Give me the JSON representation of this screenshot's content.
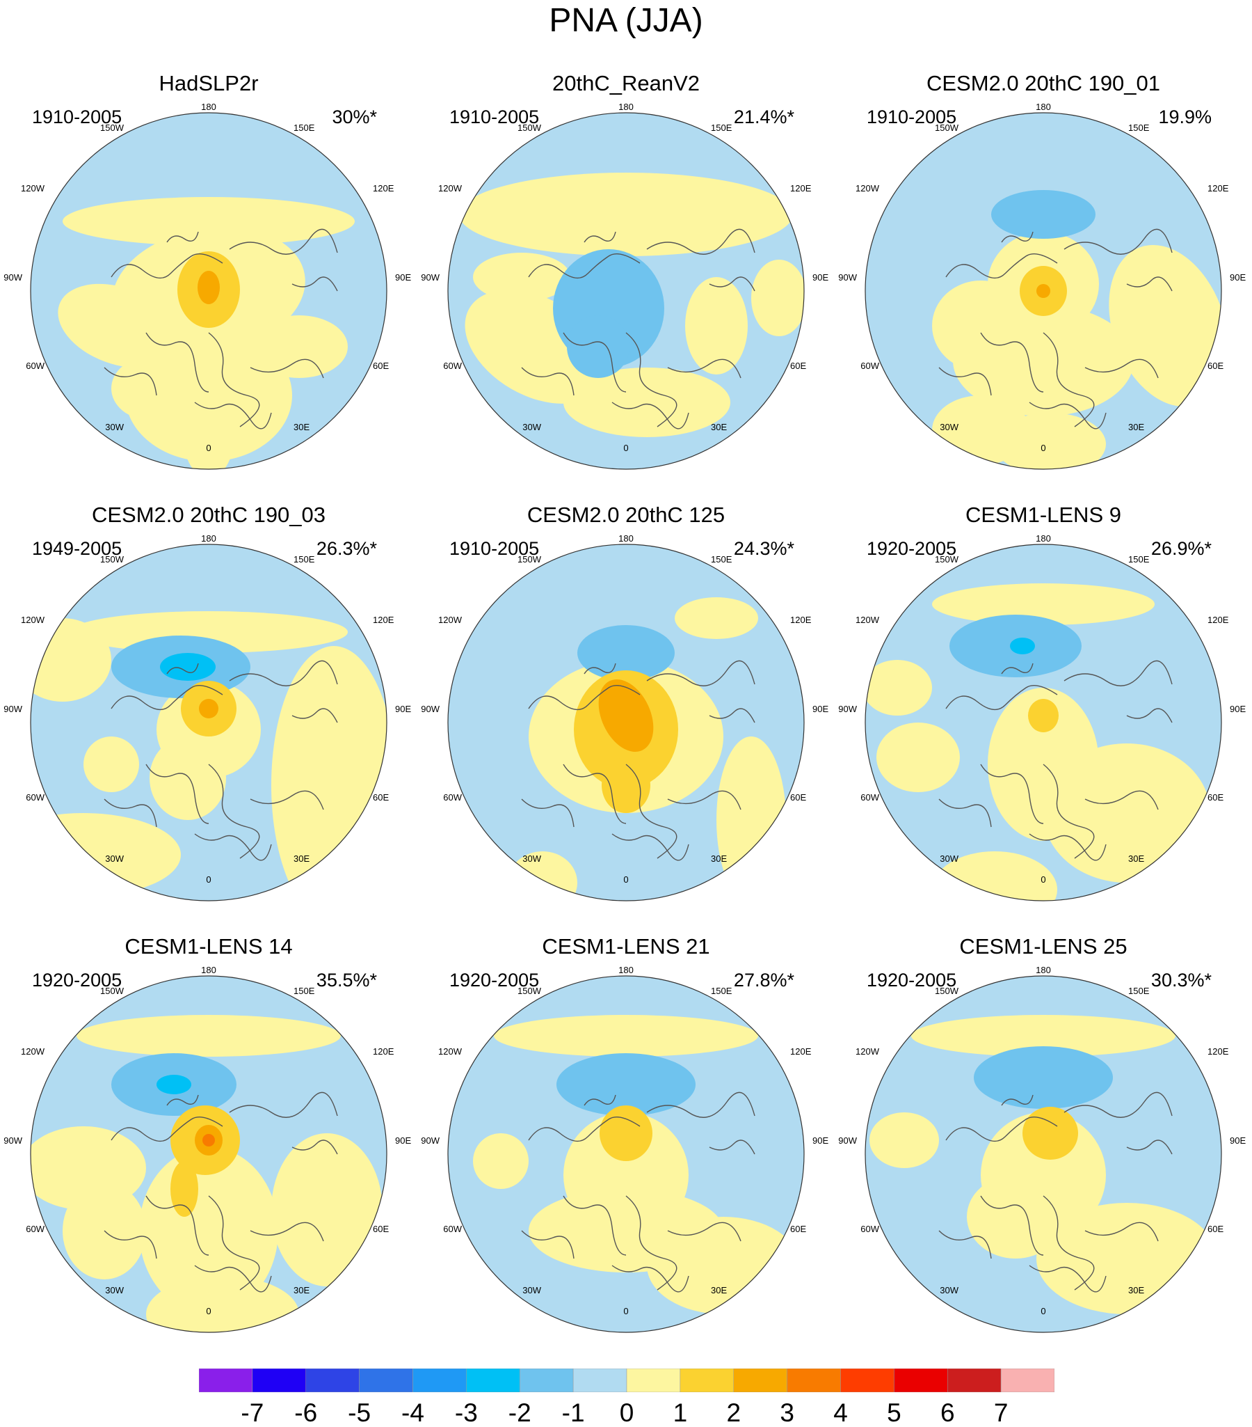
{
  "title": "PNA (JJA)",
  "longitude_labels": [
    "180",
    "150W",
    "150E",
    "120W",
    "120E",
    "90W",
    "90E",
    "60W",
    "60E",
    "30W",
    "30E",
    "0"
  ],
  "colors": {
    "land_outline": "#555555",
    "frame": "#333333",
    "levels": [
      "#8a1fea",
      "#1f00f5",
      "#2e44e6",
      "#2f73e8",
      "#1f99f5",
      "#00c0f5",
      "#6fc3ee",
      "#b1dbf1",
      "#fdf6a0",
      "#fbd230",
      "#f7a900",
      "#f87b00",
      "#fe3d00",
      "#ea0000",
      "#cc1e1e",
      "#f9b1b1"
    ]
  },
  "colorbar": {
    "labels": [
      "-7",
      "-6",
      "-5",
      "-4",
      "-3",
      "-2",
      "-1",
      "0",
      "1",
      "2",
      "3",
      "4",
      "5",
      "6",
      "7"
    ]
  },
  "panels": [
    {
      "title": "HadSLP2r",
      "period": "1910-2005",
      "variance": "30%*"
    },
    {
      "title": "20thC_ReanV2",
      "period": "1910-2005",
      "variance": "21.4%*"
    },
    {
      "title": "CESM2.0 20thC 190_01",
      "period": "1910-2005",
      "variance": "19.9%"
    },
    {
      "title": "CESM2.0 20thC 190_03",
      "period": "1949-2005",
      "variance": "26.3%*"
    },
    {
      "title": "CESM2.0 20thC 125",
      "period": "1910-2005",
      "variance": "24.3%*"
    },
    {
      "title": "CESM1-LENS 9",
      "period": "1920-2005",
      "variance": "26.9%*"
    },
    {
      "title": "CESM1-LENS 14",
      "period": "1920-2005",
      "variance": "35.5%*"
    },
    {
      "title": "CESM1-LENS 21",
      "period": "1920-2005",
      "variance": "27.8%*"
    },
    {
      "title": "CESM1-LENS 25",
      "period": "1920-2005",
      "variance": "30.3%*"
    }
  ]
}
